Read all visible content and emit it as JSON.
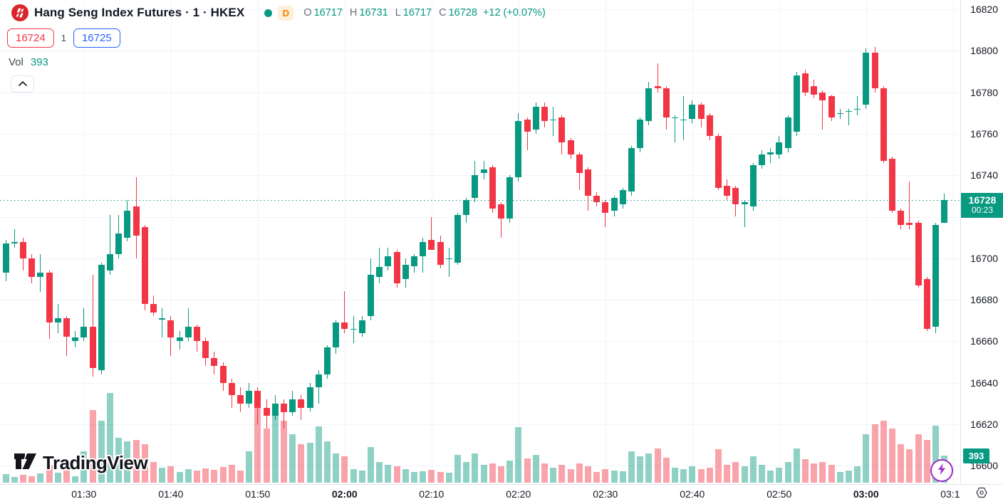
{
  "header": {
    "title": "Hang Seng Index Futures · 1 · HKEX",
    "timeframe_badge": "D",
    "legend": {
      "o_label": "O",
      "o": "16717",
      "h_label": "H",
      "h": "16731",
      "l_label": "L",
      "l": "16717",
      "c_label": "C",
      "c": "16728",
      "change": "+12 (+0.07%)"
    },
    "bid": "16724",
    "spread": "1",
    "ask": "16725",
    "vol_label": "Vol",
    "vol_value": "393"
  },
  "watermark": {
    "text": "TradingView"
  },
  "price_axis": {
    "ticks": [
      16820,
      16800,
      16780,
      16760,
      16740,
      16720,
      16700,
      16680,
      16660,
      16640,
      16620,
      16600
    ],
    "last_price_label": "16728",
    "countdown": "00:23",
    "vol_badge": "393"
  },
  "time_axis": {
    "ticks": [
      {
        "label": "01:30",
        "bold": false
      },
      {
        "label": "01:40",
        "bold": false
      },
      {
        "label": "01:50",
        "bold": false
      },
      {
        "label": "02:00",
        "bold": true
      },
      {
        "label": "02:10",
        "bold": false
      },
      {
        "label": "02:20",
        "bold": false
      },
      {
        "label": "02:30",
        "bold": false
      },
      {
        "label": "02:40",
        "bold": false
      },
      {
        "label": "02:50",
        "bold": false
      },
      {
        "label": "03:00",
        "bold": true
      },
      {
        "label": "03:10",
        "bold": false
      }
    ]
  },
  "colors": {
    "up": "#089981",
    "down": "#f23645",
    "vol_up": "rgba(8,153,129,0.45)",
    "vol_down": "rgba(242,54,69,0.45)",
    "grid": "#f0f3fa",
    "bid": "#f23645",
    "ask": "#2962ff",
    "badge_bg": "#089981",
    "delayed_badge": "#f57c00"
  },
  "chart_data": {
    "type": "candlestick+volume",
    "title": "Hang Seng Index Futures",
    "interval": "1",
    "exchange": "HKEX",
    "last": {
      "open": 16717,
      "high": 16731,
      "low": 16717,
      "close": 16728,
      "change": 12,
      "change_pct": 0.07,
      "volume": 393
    },
    "y_range": [
      16600,
      16820
    ],
    "price_grid_step": 20,
    "hidden_price_ticks_by_labels": [
      16720
    ],
    "candles_format": [
      "time",
      "open",
      "high",
      "low",
      "close",
      "volume"
    ],
    "candles": [
      [
        "01:21",
        16693,
        16709,
        16689,
        16707,
        120
      ],
      [
        "01:22",
        16707,
        16714,
        16705,
        16708,
        85
      ],
      [
        "01:23",
        16708,
        16710,
        16694,
        16700,
        110
      ],
      [
        "01:24",
        16700,
        16702,
        16688,
        16691,
        95
      ],
      [
        "01:25",
        16691,
        16702,
        16684,
        16693,
        130
      ],
      [
        "01:26",
        16693,
        16694,
        16661,
        16669,
        260
      ],
      [
        "01:27",
        16669,
        16678,
        16664,
        16671,
        140
      ],
      [
        "01:28",
        16671,
        16672,
        16653,
        16662,
        180
      ],
      [
        "01:29",
        16660,
        16665,
        16657,
        16662,
        90
      ],
      [
        "01:30",
        16662,
        16676,
        16660,
        16667,
        450
      ],
      [
        "01:31",
        16667,
        16692,
        16643,
        16647,
        1050
      ],
      [
        "01:32",
        16646,
        16698,
        16644,
        16697,
        900
      ],
      [
        "01:33",
        16694,
        16721,
        16692,
        16702,
        1300
      ],
      [
        "01:34",
        16702,
        16721,
        16700,
        16712,
        650
      ],
      [
        "01:35",
        16710,
        16728,
        16708,
        16723,
        600
      ],
      [
        "01:36",
        16725,
        16739,
        16700,
        16711,
        620
      ],
      [
        "01:37",
        16715,
        16716,
        16675,
        16678,
        560
      ],
      [
        "01:38",
        16678,
        16682,
        16672,
        16674,
        300
      ],
      [
        "01:39",
        16671,
        16676,
        16662,
        16671,
        220
      ],
      [
        "01:40",
        16670,
        16672,
        16653,
        16662,
        240
      ],
      [
        "01:41",
        16660,
        16665,
        16656,
        16662,
        160
      ],
      [
        "01:42",
        16662,
        16676,
        16660,
        16667,
        200
      ],
      [
        "01:43",
        16667,
        16668,
        16655,
        16660,
        180
      ],
      [
        "01:44",
        16660,
        16662,
        16648,
        16652,
        210
      ],
      [
        "01:45",
        16652,
        16655,
        16644,
        16648,
        190
      ],
      [
        "01:46",
        16648,
        16650,
        16636,
        16640,
        230
      ],
      [
        "01:47",
        16640,
        16642,
        16628,
        16634,
        260
      ],
      [
        "01:48",
        16634,
        16638,
        16626,
        16630,
        180
      ],
      [
        "01:49",
        16630,
        16640,
        16628,
        16636,
        450
      ],
      [
        "01:50",
        16636,
        16638,
        16620,
        16628,
        1200
      ],
      [
        "01:51",
        16628,
        16632,
        16618,
        16624,
        780
      ],
      [
        "01:52",
        16624,
        16634,
        16622,
        16630,
        1060
      ],
      [
        "01:53",
        16630,
        16632,
        16618,
        16626,
        900
      ],
      [
        "01:54",
        16626,
        16636,
        16624,
        16632,
        700
      ],
      [
        "01:55",
        16632,
        16634,
        16622,
        16628,
        560
      ],
      [
        "01:56",
        16628,
        16640,
        16626,
        16638,
        580
      ],
      [
        "01:57",
        16638,
        16646,
        16630,
        16644,
        810
      ],
      [
        "01:58",
        16644,
        16658,
        16642,
        16657,
        600
      ],
      [
        "01:59",
        16657,
        16670,
        16654,
        16669,
        420
      ],
      [
        "02:00",
        16669,
        16684,
        16664,
        16666,
        380
      ],
      [
        "02:01",
        16666,
        16672,
        16659,
        16666,
        200
      ],
      [
        "02:02",
        16664,
        16672,
        16662,
        16670,
        180
      ],
      [
        "02:03",
        16672,
        16700,
        16670,
        16692,
        520
      ],
      [
        "02:04",
        16691,
        16705,
        16688,
        16696,
        300
      ],
      [
        "02:05",
        16696,
        16705,
        16694,
        16701,
        260
      ],
      [
        "02:06",
        16703,
        16704,
        16686,
        16688,
        240
      ],
      [
        "02:07",
        16690,
        16700,
        16686,
        16697,
        200
      ],
      [
        "02:08",
        16696,
        16702,
        16693,
        16701,
        150
      ],
      [
        "02:09",
        16701,
        16710,
        16693,
        16708,
        170
      ],
      [
        "02:10",
        16709,
        16720,
        16704,
        16704,
        190
      ],
      [
        "02:11",
        16708,
        16711,
        16695,
        16697,
        160
      ],
      [
        "02:12",
        16700,
        16705,
        16691,
        16700,
        140
      ],
      [
        "02:13",
        16698,
        16722,
        16697,
        16721,
        400
      ],
      [
        "02:14",
        16721,
        16729,
        16717,
        16728,
        300
      ],
      [
        "02:15",
        16729,
        16747,
        16727,
        16740,
        420
      ],
      [
        "02:16",
        16741,
        16747,
        16738,
        16743,
        260
      ],
      [
        "02:17",
        16744,
        16745,
        16722,
        16724,
        280
      ],
      [
        "02:18",
        16726,
        16727,
        16710,
        16719,
        240
      ],
      [
        "02:19",
        16719,
        16740,
        16717,
        16739,
        320
      ],
      [
        "02:20",
        16739,
        16770,
        16737,
        16766,
        800
      ],
      [
        "02:21",
        16767,
        16768,
        16752,
        16761,
        350
      ],
      [
        "02:22",
        16762,
        16775,
        16760,
        16773,
        400
      ],
      [
        "02:23",
        16773,
        16775,
        16763,
        16766,
        280
      ],
      [
        "02:24",
        16767,
        16773,
        16759,
        16767,
        220
      ],
      [
        "02:25",
        16768,
        16769,
        16750,
        16756,
        260
      ],
      [
        "02:26",
        16757,
        16758,
        16748,
        16750,
        200
      ],
      [
        "02:27",
        16750,
        16751,
        16733,
        16741,
        280
      ],
      [
        "02:28",
        16743,
        16744,
        16723,
        16730,
        240
      ],
      [
        "02:29",
        16730,
        16732,
        16725,
        16727,
        160
      ],
      [
        "02:30",
        16727,
        16728,
        16715,
        16722,
        200
      ],
      [
        "02:31",
        16723,
        16730,
        16720,
        16729,
        180
      ],
      [
        "02:32",
        16726,
        16734,
        16724,
        16733,
        170
      ],
      [
        "02:33",
        16732,
        16754,
        16730,
        16753,
        450
      ],
      [
        "02:34",
        16753,
        16768,
        16751,
        16767,
        380
      ],
      [
        "02:35",
        16766,
        16785,
        16764,
        16782,
        420
      ],
      [
        "02:36",
        16783,
        16794,
        16780,
        16782,
        500
      ],
      [
        "02:37",
        16782,
        16783,
        16762,
        16768,
        360
      ],
      [
        "02:38",
        16768,
        16769,
        16756,
        16768,
        220
      ],
      [
        "02:39",
        16767,
        16778,
        16757,
        16767,
        200
      ],
      [
        "02:40",
        16767,
        16776,
        16765,
        16774,
        240
      ],
      [
        "02:41",
        16774,
        16775,
        16763,
        16767,
        200
      ],
      [
        "02:42",
        16769,
        16770,
        16757,
        16759,
        220
      ],
      [
        "02:43",
        16759,
        16760,
        16733,
        16734,
        480
      ],
      [
        "02:44",
        16735,
        16738,
        16728,
        16730,
        260
      ],
      [
        "02:45",
        16734,
        16735,
        16720,
        16726,
        300
      ],
      [
        "02:46",
        16726,
        16728,
        16715,
        16727,
        240
      ],
      [
        "02:47",
        16725,
        16746,
        16723,
        16745,
        380
      ],
      [
        "02:48",
        16745,
        16752,
        16743,
        16750,
        260
      ],
      [
        "02:49",
        16750,
        16753,
        16746,
        16751,
        180
      ],
      [
        "02:50",
        16750,
        16759,
        16748,
        16756,
        220
      ],
      [
        "02:51",
        16753,
        16769,
        16751,
        16768,
        300
      ],
      [
        "02:52",
        16761,
        16790,
        16759,
        16788,
        500
      ],
      [
        "02:53",
        16789,
        16791,
        16778,
        16780,
        340
      ],
      [
        "02:54",
        16783,
        16786,
        16777,
        16779,
        280
      ],
      [
        "02:55",
        16780,
        16781,
        16762,
        16776,
        300
      ],
      [
        "02:56",
        16778,
        16779,
        16766,
        16768,
        260
      ],
      [
        "02:57",
        16770,
        16772,
        16767,
        16770,
        160
      ],
      [
        "02:58",
        16771,
        16772,
        16764,
        16771,
        180
      ],
      [
        "02:59",
        16772,
        16778,
        16769,
        16772,
        240
      ],
      [
        "03:00",
        16774,
        16801,
        16772,
        16799,
        700
      ],
      [
        "03:01",
        16799,
        16802,
        16780,
        16782,
        850
      ],
      [
        "03:02",
        16782,
        16783,
        16746,
        16747,
        900
      ],
      [
        "03:03",
        16748,
        16749,
        16722,
        16723,
        780
      ],
      [
        "03:04",
        16723,
        16724,
        16714,
        16716,
        560
      ],
      [
        "03:05",
        16717,
        16737,
        16714,
        16716,
        480
      ],
      [
        "03:06",
        16717,
        16718,
        16686,
        16687,
        700
      ],
      [
        "03:07",
        16690,
        16691,
        16665,
        16666,
        620
      ],
      [
        "03:08",
        16667,
        16717,
        16664,
        16716,
        820
      ],
      [
        "03:09",
        16717,
        16731,
        16717,
        16728,
        393
      ]
    ]
  }
}
